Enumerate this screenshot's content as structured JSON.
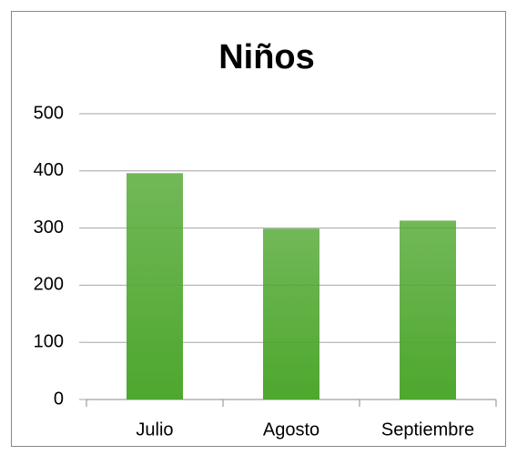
{
  "chart_data": {
    "type": "bar",
    "title": "Niños",
    "categories": [
      "Julio",
      "Agosto",
      "Septiembre"
    ],
    "values": [
      396,
      299,
      313
    ],
    "color": "#4ea72e",
    "ylim": [
      0,
      500
    ],
    "yticks": [
      0,
      100,
      200,
      300,
      400,
      500
    ],
    "grid": true
  }
}
